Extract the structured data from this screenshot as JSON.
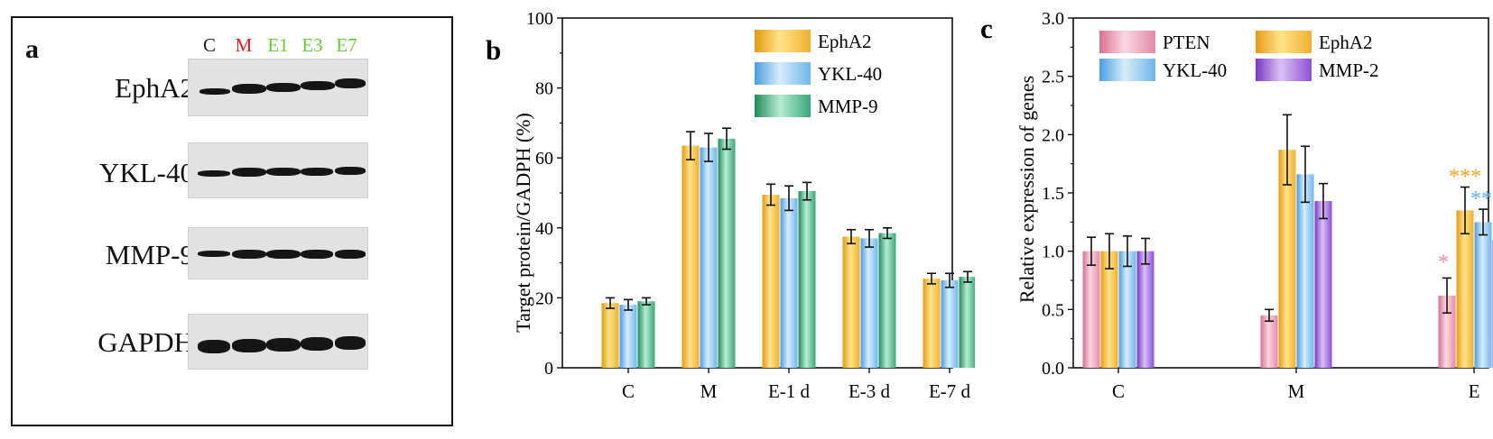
{
  "panel_a": {
    "letter": "a",
    "lanes": [
      {
        "label": "C",
        "color": "#222222"
      },
      {
        "label": "M",
        "color": "#e02020"
      },
      {
        "label": "E1",
        "color": "#66cc33"
      },
      {
        "label": "E3",
        "color": "#66cc33"
      },
      {
        "label": "E7",
        "color": "#66cc33"
      }
    ],
    "proteins": [
      "EphA2",
      "YKL-40",
      "MMP-9",
      "GAPDH"
    ]
  },
  "chart_data": [
    {
      "panel": "b",
      "type": "bar",
      "title": "",
      "xlabel": "",
      "ylabel": "Target protein/GADPH (%)",
      "ylim": [
        0,
        100
      ],
      "yticks": [
        0,
        20,
        40,
        60,
        80,
        100
      ],
      "categories": [
        "C",
        "M",
        "E-1 d",
        "E-3 d",
        "E-7 d"
      ],
      "legend_position": "top-right",
      "series": [
        {
          "name": "EphA2",
          "color": "#f0b030",
          "values": [
            18.5,
            63.5,
            49.5,
            37.5,
            25.5
          ],
          "errors": [
            1.5,
            4.0,
            3.0,
            2.0,
            1.5
          ]
        },
        {
          "name": "YKL-40",
          "color": "#6fb6ea",
          "values": [
            18.0,
            63.0,
            48.5,
            37.0,
            25.0
          ],
          "errors": [
            1.5,
            4.0,
            3.5,
            2.5,
            2.0
          ]
        },
        {
          "name": "MMP-9",
          "color": "#3aa878",
          "values": [
            19.0,
            65.5,
            50.5,
            38.5,
            26.0
          ],
          "errors": [
            1.0,
            3.0,
            2.5,
            1.5,
            1.5
          ]
        }
      ]
    },
    {
      "panel": "c",
      "type": "bar",
      "title": "",
      "xlabel": "",
      "ylabel": "Relative expression of genes",
      "ylim": [
        0,
        3.0
      ],
      "yticks": [
        "0.0",
        "0.5",
        "1.0",
        "1.5",
        "2.0",
        "2.5",
        "3.0"
      ],
      "categories": [
        "C",
        "M",
        "E"
      ],
      "legend_position": "top",
      "series": [
        {
          "name": "PTEN",
          "color": "#e58aa6",
          "values": [
            1.0,
            0.45,
            0.62
          ],
          "errors": [
            0.12,
            0.05,
            0.15
          ]
        },
        {
          "name": "EphA2",
          "color": "#f0b030",
          "values": [
            1.0,
            1.87,
            1.35
          ],
          "errors": [
            0.15,
            0.3,
            0.2
          ]
        },
        {
          "name": "YKL-40",
          "color": "#6fb6ea",
          "values": [
            1.0,
            1.66,
            1.25
          ],
          "errors": [
            0.13,
            0.24,
            0.11
          ]
        },
        {
          "name": "MMP-2",
          "color": "#8f4fd6",
          "values": [
            1.0,
            1.43,
            1.09
          ],
          "errors": [
            0.11,
            0.15,
            0.08
          ]
        }
      ],
      "annotations": [
        {
          "text": "*",
          "category": "E",
          "series": "PTEN",
          "color": "#e58aa6"
        },
        {
          "text": "***",
          "category": "E",
          "series": "EphA2",
          "color": "#f0a020"
        },
        {
          "text": "***",
          "category": "E",
          "series": "YKL-40",
          "color": "#5fb0ee"
        },
        {
          "text": "***",
          "category": "E",
          "series": "MMP-2",
          "color": "#8f4fd6"
        }
      ]
    }
  ]
}
